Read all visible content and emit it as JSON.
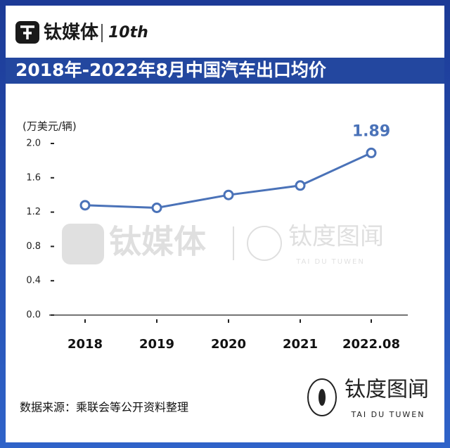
{
  "header": {
    "brand": "钛媒体",
    "badge": "10th"
  },
  "chart_data": {
    "type": "line",
    "title": "2018年-2022年8月中国汽车出口均价",
    "y_label": "(万美元/辆)",
    "categories": [
      "2018",
      "2019",
      "2020",
      "2021",
      "2022.08"
    ],
    "series": [
      {
        "color": "#4a72b8",
        "values": [
          1.28,
          1.25,
          1.4,
          1.51,
          1.89
        ],
        "value_labels": [
          null,
          null,
          null,
          null,
          "1.89"
        ]
      }
    ],
    "ylim": [
      0,
      2.0
    ],
    "yticks": [
      {
        "value": 0,
        "label": "0.0"
      },
      0.4,
      0.8,
      1.2,
      1.6,
      {
        "value": 2,
        "label": "2.0"
      }
    ],
    "grid": false
  },
  "watermark": {
    "brand": "钛媒体",
    "logo": "钛度图闻",
    "logo_en": "TAI DU TUWEN"
  },
  "footer": {
    "source": "数据来源：乘联会等公开资料整理",
    "logo": "钛度图闻",
    "logo_en": "TAI DU TUWEN"
  }
}
